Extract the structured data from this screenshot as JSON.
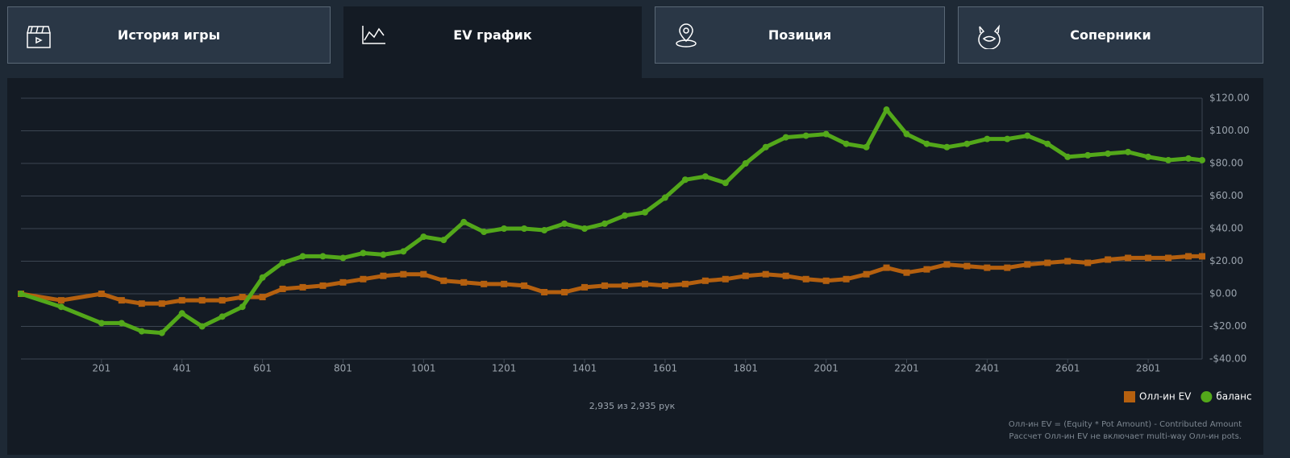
{
  "tabs": [
    {
      "label": "История игры"
    },
    {
      "label": "EV график"
    },
    {
      "label": "Позиция"
    },
    {
      "label": "Соперники"
    }
  ],
  "chart_data": {
    "type": "line",
    "x": [
      1,
      101,
      201,
      251,
      301,
      351,
      401,
      451,
      501,
      551,
      601,
      651,
      701,
      751,
      801,
      851,
      901,
      951,
      1001,
      1051,
      1101,
      1151,
      1201,
      1251,
      1301,
      1351,
      1401,
      1451,
      1501,
      1551,
      1601,
      1651,
      1701,
      1751,
      1801,
      1851,
      1901,
      1951,
      2001,
      2051,
      2101,
      2151,
      2201,
      2251,
      2301,
      2351,
      2401,
      2451,
      2501,
      2551,
      2601,
      2651,
      2701,
      2751,
      2801,
      2851,
      2901,
      2935
    ],
    "series": [
      {
        "name": "Олл-ин EV",
        "color": "#b5600f",
        "marker": "square",
        "values": [
          0,
          -4,
          0,
          -4,
          -6,
          -6,
          -4,
          -4,
          -4,
          -2,
          -2,
          3,
          4,
          5,
          7,
          9,
          11,
          12,
          12,
          8,
          7,
          6,
          6,
          5,
          1,
          1,
          4,
          5,
          5,
          6,
          5,
          6,
          8,
          9,
          11,
          12,
          11,
          9,
          8,
          9,
          12,
          16,
          13,
          15,
          18,
          17,
          16,
          16,
          18,
          19,
          20,
          19,
          21,
          22,
          22,
          22,
          23,
          23
        ]
      },
      {
        "name": "баланс",
        "color": "#53a81a",
        "marker": "circle",
        "values": [
          0,
          -8,
          -18,
          -18,
          -23,
          -24,
          -12,
          -20,
          -14,
          -8,
          10,
          19,
          23,
          23,
          22,
          25,
          24,
          26,
          35,
          33,
          44,
          38,
          40,
          40,
          39,
          43,
          40,
          43,
          48,
          50,
          59,
          70,
          72,
          68,
          80,
          90,
          96,
          97,
          98,
          92,
          90,
          113,
          98,
          92,
          90,
          92,
          95,
          95,
          97,
          92,
          84,
          85,
          86,
          87,
          84,
          82,
          83,
          82
        ]
      }
    ],
    "xlim": [
      1,
      2935
    ],
    "ylim": [
      -40,
      120
    ],
    "xticks": [
      201,
      401,
      601,
      801,
      1001,
      1201,
      1401,
      1601,
      1801,
      2001,
      2201,
      2401,
      2601,
      2801
    ],
    "yticks": [
      {
        "value": -40,
        "label": "-$40.00"
      },
      {
        "value": -20,
        "label": "-$20.00"
      },
      {
        "value": 0,
        "label": "$0.00"
      },
      {
        "value": 20,
        "label": "$20.00"
      },
      {
        "value": 40,
        "label": "$40.00"
      },
      {
        "value": 60,
        "label": "$60.00"
      },
      {
        "value": 80,
        "label": "$80.00"
      },
      {
        "value": 100,
        "label": "$100.00"
      },
      {
        "value": 120,
        "label": "$120.00"
      }
    ],
    "grid": true,
    "legend": "bottom-right"
  },
  "hand_count": "2,935 из 2,935 рук",
  "notes": [
    "Олл-ин EV = (Equity * Pot Amount) - Contributed Amount",
    "Рассчет Олл-ин EV не включает multi-way Олл-ин pots."
  ]
}
